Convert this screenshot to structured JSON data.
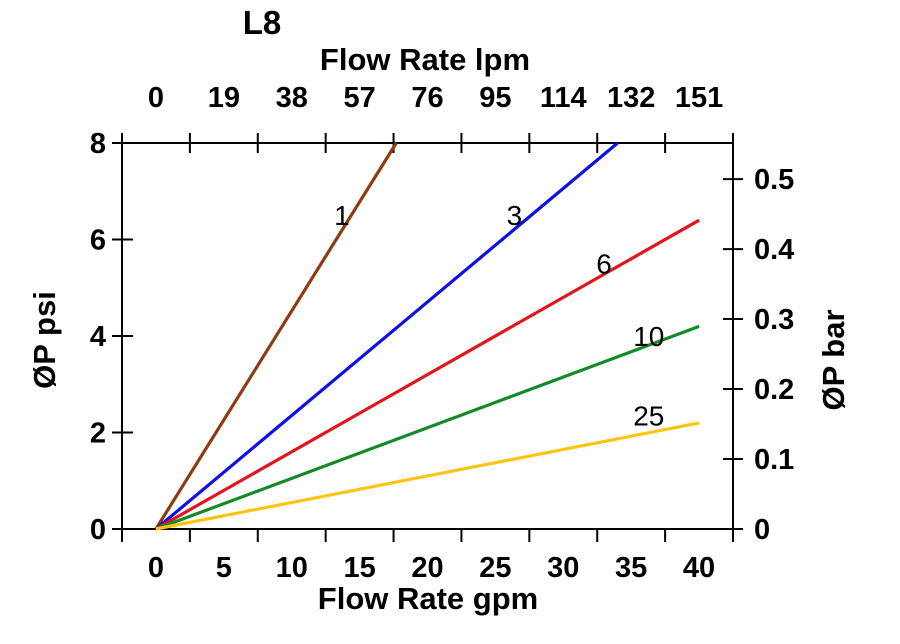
{
  "chart_data": {
    "type": "line",
    "title": "L8",
    "top_axis": {
      "label": "Flow Rate lpm",
      "tick_labels": [
        "0",
        "19",
        "38",
        "57",
        "76",
        "95",
        "114",
        "132",
        "151"
      ]
    },
    "bottom_axis": {
      "label": "Flow Rate gpm",
      "tick_labels": [
        "0",
        "5",
        "10",
        "15",
        "20",
        "25",
        "30",
        "35",
        "40"
      ],
      "tick_values": [
        0,
        5,
        10,
        15,
        20,
        25,
        30,
        35,
        40
      ],
      "range": [
        0,
        40
      ]
    },
    "left_axis": {
      "label": "ØP psi",
      "tick_labels": [
        "0",
        "2",
        "4",
        "6",
        "8"
      ],
      "tick_values": [
        0,
        2,
        4,
        6,
        8
      ],
      "range": [
        0,
        8
      ]
    },
    "right_axis": {
      "label": "ØP bar",
      "tick_labels": [
        "0",
        "0.1",
        "0.2",
        "0.3",
        "0.4",
        "0.5"
      ],
      "tick_values": [
        0,
        0.1,
        0.2,
        0.3,
        0.4,
        0.5
      ],
      "psi_per_bar": 14.5038
    },
    "grid": false,
    "legend": "inline-labels",
    "axis_color": "#000000",
    "series": [
      {
        "name": "1",
        "color": "#8e3b12",
        "points": [
          [
            0,
            0
          ],
          [
            17.7,
            8
          ]
        ],
        "label_at": [
          13.7,
          6.5
        ]
      },
      {
        "name": "3",
        "color": "#0f0fe6",
        "points": [
          [
            0,
            0
          ],
          [
            34.0,
            8
          ]
        ],
        "label_at": [
          26.4,
          6.5
        ]
      },
      {
        "name": "6",
        "color": "#e3151c",
        "points": [
          [
            0,
            0
          ],
          [
            40,
            6.4
          ]
        ],
        "label_at": [
          33.0,
          5.5
        ]
      },
      {
        "name": "10",
        "color": "#128a28",
        "points": [
          [
            0,
            0
          ],
          [
            40,
            4.2
          ]
        ],
        "label_at": [
          36.3,
          4.0
        ]
      },
      {
        "name": "25",
        "color": "#fdc513",
        "points": [
          [
            0,
            0
          ],
          [
            40,
            2.2
          ]
        ],
        "label_at": [
          36.3,
          2.35
        ]
      }
    ]
  }
}
